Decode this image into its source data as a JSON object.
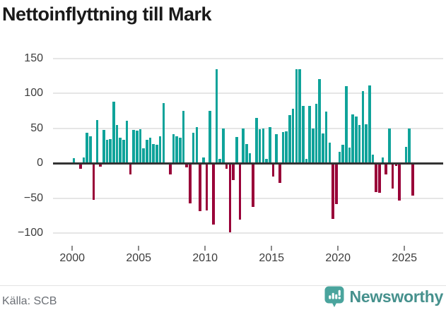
{
  "title": "Nettoinflyttning till Mark",
  "source": "Källa: SCB",
  "brand": {
    "name": "Newsworthy",
    "logo_icon": "newsworthy-chart-bubble-icon"
  },
  "colors": {
    "positive": "#0fa39a",
    "negative": "#990038",
    "grid": "#e6e6e6",
    "zero_line": "#333333",
    "title_text": "#1a1a1a",
    "axis_text": "#3c3c3c",
    "source_text": "#6c7076",
    "brand_text": "#46918d",
    "brand_icon": "#4aa49d"
  },
  "chart_data": {
    "type": "bar",
    "title": "Nettoinflyttning till Mark",
    "xlabel": "",
    "ylabel": "",
    "period": "quarter",
    "x_start": "2000Q1",
    "x_end": "2025Q3",
    "ylim": [
      -115,
      152
    ],
    "grid": true,
    "yticks": [
      {
        "v": 150,
        "label": "150"
      },
      {
        "v": 100,
        "label": "100"
      },
      {
        "v": 50,
        "label": "50"
      },
      {
        "v": 0,
        "label": "0"
      },
      {
        "v": -50,
        "label": "−50"
      },
      {
        "v": -100,
        "label": "−100"
      }
    ],
    "xticks": [
      {
        "year": 2000,
        "label": "2000"
      },
      {
        "year": 2005,
        "label": "2005"
      },
      {
        "year": 2010,
        "label": "2010"
      },
      {
        "year": 2015,
        "label": "2015"
      },
      {
        "year": 2020,
        "label": "2020"
      },
      {
        "year": 2025,
        "label": "2025"
      }
    ],
    "values": [
      7,
      0,
      -8,
      8,
      43,
      38,
      -52,
      62,
      -5,
      48,
      33,
      34,
      88,
      55,
      36,
      33,
      61,
      -16,
      48,
      47,
      49,
      21,
      33,
      36,
      27,
      26,
      38,
      86,
      0,
      -16,
      41,
      38,
      36,
      75,
      -6,
      -58,
      43,
      52,
      -69,
      8,
      -68,
      75,
      -88,
      134,
      6,
      50,
      -8,
      -99,
      -24,
      37,
      -81,
      50,
      27,
      14,
      -63,
      65,
      49,
      50,
      6,
      52,
      -19,
      41,
      -28,
      44,
      46,
      69,
      78,
      134,
      134,
      82,
      6,
      82,
      50,
      85,
      120,
      42,
      74,
      29,
      -80,
      -59,
      16,
      26,
      110,
      22,
      70,
      67,
      55,
      103,
      56,
      111,
      12,
      -41,
      -42,
      8,
      -16,
      50,
      -36,
      -4,
      -53,
      0,
      23,
      50,
      -46
    ]
  }
}
